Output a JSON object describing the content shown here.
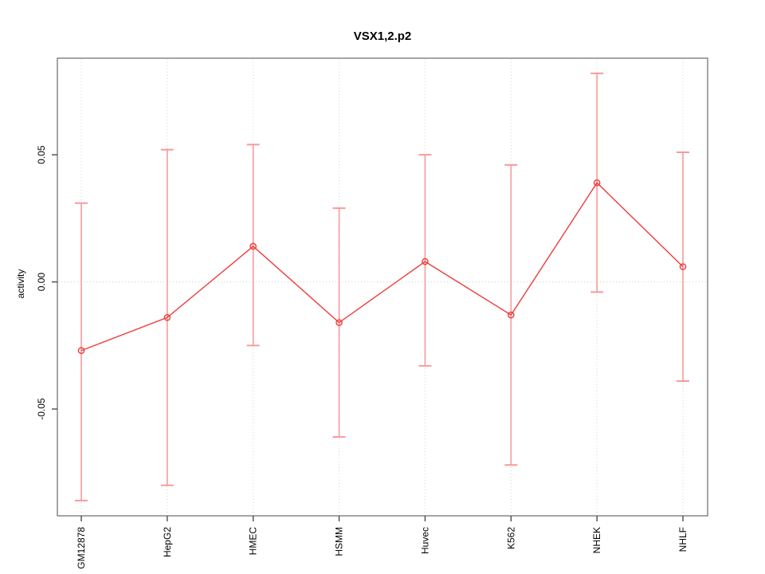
{
  "chart_data": {
    "type": "line",
    "title": "VSX1,2.p2",
    "ylabel": "activity",
    "xlabel": "",
    "categories": [
      "GM12878",
      "HepG2",
      "HMEC",
      "HSMM",
      "Huvec",
      "K562",
      "NHEK",
      "NHLF"
    ],
    "series": [
      {
        "name": "activity",
        "values": [
          -0.027,
          -0.014,
          0.014,
          -0.016,
          0.008,
          -0.013,
          0.039,
          0.006
        ],
        "upper": [
          0.031,
          0.052,
          0.054,
          0.029,
          0.05,
          0.046,
          0.082,
          0.051
        ],
        "lower": [
          -0.086,
          -0.08,
          -0.025,
          -0.061,
          -0.033,
          -0.072,
          -0.004,
          -0.039
        ]
      }
    ],
    "yticks": [
      {
        "value": -0.05,
        "label": "-0.05"
      },
      {
        "value": 0.0,
        "label": "0.00"
      },
      {
        "value": 0.05,
        "label": "0.05"
      }
    ],
    "ylim": [
      -0.092,
      0.088
    ],
    "legend": "none",
    "grid": {
      "vertical_at_categories": true,
      "horizontal_at_zero": true,
      "style": "dotted"
    },
    "colors": {
      "line": "#ef3b3b",
      "marker": "#ef3b3b",
      "error_bar": "#f89a9a",
      "box": "#878787",
      "tick": "#4b4b4b",
      "grid": "#d9d9d9",
      "text": "#000000",
      "background": "#ffffff"
    }
  }
}
